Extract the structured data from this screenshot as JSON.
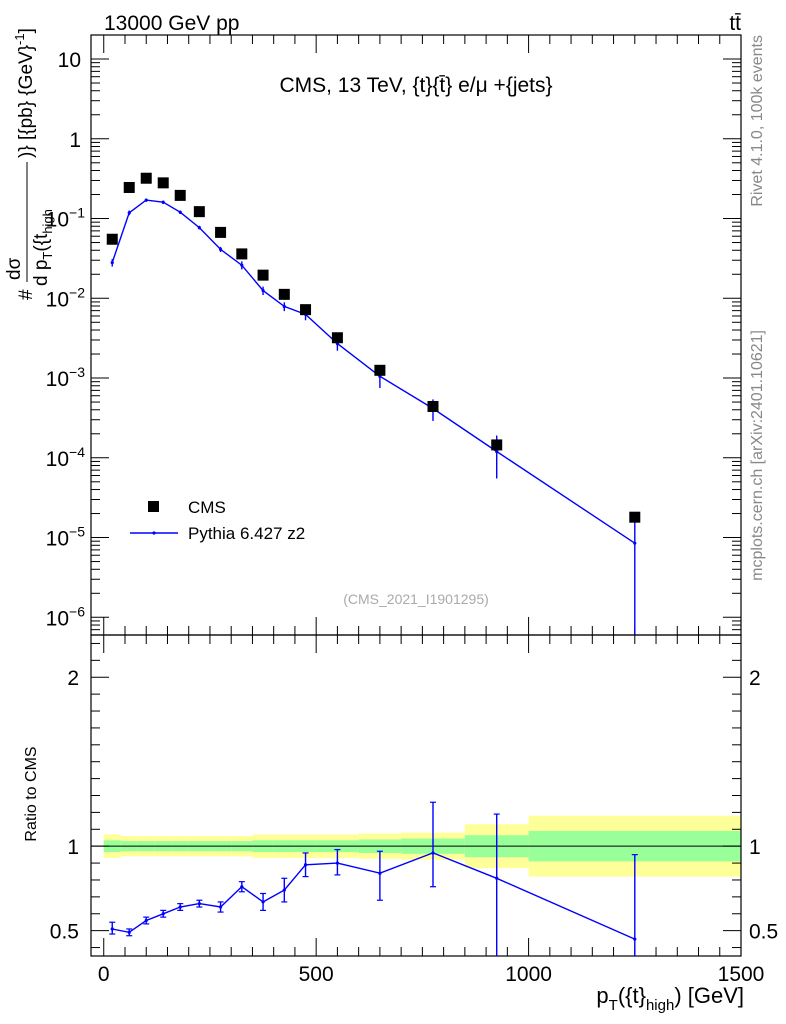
{
  "header": {
    "left": "13000 GeV pp",
    "right": "tt̄"
  },
  "side_text": {
    "rivet": "Rivet 4.1.0,  100k events",
    "mcplots": "mcplots.cern.ch [arXiv:2401.10621]"
  },
  "chart_data": [
    {
      "type": "scatter",
      "panel": "main",
      "title": "CMS, 13 TeV, {t}{t̄} e/μ +{jets}",
      "analysis_id": "(CMS_2021_I1901295)",
      "ylabel": "#  dσ / d p_T({t}_high)  )} [{pb} {GeV}⁻¹]",
      "ylabel_parts": {
        "hash": "#",
        "num": "dσ",
        "den": "d p",
        "den_sub": "T",
        "den_rest": "({t",
        "den_sub2": "high",
        "units": ")} [{pb} {GeV}",
        "units_sup": "-1",
        "units_end": "]"
      },
      "yscale": "log",
      "ylim": [
        6e-07,
        20
      ],
      "xlim": [
        -30,
        1500
      ],
      "y_ticks": [
        {
          "value": 10,
          "label": "10"
        },
        {
          "value": 1,
          "label": "1"
        },
        {
          "value": 0.1,
          "label": "10",
          "sup": "−1"
        },
        {
          "value": 0.01,
          "label": "10",
          "sup": "−2"
        },
        {
          "value": 0.001,
          "label": "10",
          "sup": "−3"
        },
        {
          "value": 0.0001,
          "label": "10",
          "sup": "−4"
        },
        {
          "value": 1e-05,
          "label": "10",
          "sup": "−5"
        },
        {
          "value": 1e-06,
          "label": "10",
          "sup": "−6"
        }
      ],
      "legend": [
        {
          "name": "CMS",
          "marker": "square",
          "color": "#000000"
        },
        {
          "name": "Pythia 6.427 z2",
          "marker": "line",
          "color": "#0000ff"
        }
      ],
      "series": [
        {
          "name": "CMS",
          "color": "#000000",
          "x": [
            20,
            60,
            100,
            140,
            180,
            225,
            275,
            325,
            375,
            425,
            475,
            550,
            650,
            775,
            925,
            1250
          ],
          "y": [
            0.055,
            0.245,
            0.32,
            0.28,
            0.195,
            0.122,
            0.067,
            0.036,
            0.0195,
            0.0112,
            0.0072,
            0.0032,
            0.00125,
            0.00044,
            0.000145,
            1.8e-05
          ]
        },
        {
          "name": "Pythia 6.427 z2",
          "color": "#0000ff",
          "x": [
            20,
            60,
            100,
            140,
            180,
            225,
            275,
            325,
            375,
            425,
            475,
            550,
            650,
            775,
            925,
            1250
          ],
          "y": [
            0.028,
            0.118,
            0.17,
            0.16,
            0.12,
            0.077,
            0.041,
            0.026,
            0.0125,
            0.0079,
            0.0063,
            0.0027,
            0.00105,
            0.000415,
            0.00012,
            8.5e-06
          ],
          "y_low": [
            0.025,
            0.11,
            0.162,
            0.152,
            0.114,
            0.073,
            0.038,
            0.023,
            0.011,
            0.0069,
            0.0053,
            0.0022,
            0.00075,
            0.00029,
            5.5e-05,
            1e-07
          ],
          "y_high": [
            0.031,
            0.126,
            0.178,
            0.168,
            0.126,
            0.081,
            0.044,
            0.029,
            0.014,
            0.0089,
            0.0073,
            0.0032,
            0.00135,
            0.00054,
            0.00019,
            1.7e-05
          ]
        }
      ]
    },
    {
      "type": "line",
      "panel": "ratio",
      "ylabel": "Ratio to CMS",
      "xlabel": "p_T({t}_high) [GeV]",
      "xlabel_parts": {
        "p": "p",
        "sub": "T",
        "mid": "({t}",
        "sub2": "high",
        "end": ") [GeV]"
      },
      "ylim": [
        0.35,
        2.25
      ],
      "xlim": [
        -30,
        1500
      ],
      "y_ticks": [
        {
          "value": 0.5,
          "label": "0.5"
        },
        {
          "value": 1,
          "label": "1"
        },
        {
          "value": 2,
          "label": "2"
        }
      ],
      "x_ticks": [
        {
          "value": 0,
          "label": "0"
        },
        {
          "value": 500,
          "label": "500"
        },
        {
          "value": 1000,
          "label": "1000"
        },
        {
          "value": 1500,
          "label": "1500"
        }
      ],
      "bands": {
        "edges": [
          0,
          40,
          80,
          120,
          160,
          200,
          250,
          300,
          350,
          400,
          450,
          500,
          600,
          700,
          850,
          1000,
          1500
        ],
        "yellow_half": [
          0.07,
          0.06,
          0.06,
          0.06,
          0.06,
          0.06,
          0.06,
          0.06,
          0.07,
          0.07,
          0.07,
          0.07,
          0.075,
          0.08,
          0.13,
          0.18,
          0.22
        ],
        "green_half": [
          0.035,
          0.03,
          0.03,
          0.03,
          0.03,
          0.03,
          0.03,
          0.03,
          0.035,
          0.035,
          0.035,
          0.035,
          0.04,
          0.045,
          0.065,
          0.09,
          0.11
        ]
      },
      "series": [
        {
          "name": "Pythia 6.427 z2 / CMS",
          "color": "#0000ff",
          "x": [
            20,
            60,
            100,
            140,
            180,
            225,
            275,
            325,
            375,
            425,
            475,
            550,
            650,
            775,
            925,
            1250
          ],
          "y": [
            0.51,
            0.49,
            0.56,
            0.6,
            0.64,
            0.66,
            0.64,
            0.76,
            0.67,
            0.74,
            0.89,
            0.9,
            0.84,
            0.96,
            0.81,
            0.45
          ],
          "y_low": [
            0.48,
            0.47,
            0.54,
            0.58,
            0.62,
            0.64,
            0.61,
            0.73,
            0.62,
            0.67,
            0.82,
            0.83,
            0.68,
            0.76,
            0.35,
            0.35
          ],
          "y_high": [
            0.55,
            0.51,
            0.58,
            0.62,
            0.66,
            0.68,
            0.67,
            0.79,
            0.72,
            0.81,
            0.96,
            0.98,
            0.97,
            1.26,
            1.19,
            0.95
          ]
        }
      ]
    }
  ]
}
